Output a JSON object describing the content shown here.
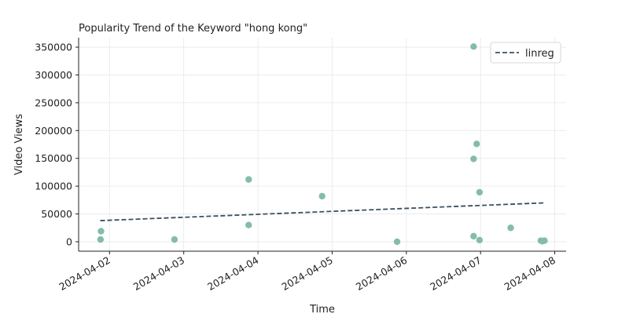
{
  "chart_data": {
    "type": "scatter",
    "title": "Popularity Trend of the Keyword \"hong kong\"",
    "xlabel": "Time",
    "ylabel": "Video Views",
    "x_ticks": [
      "2024-04-02",
      "2024-04-03",
      "2024-04-04",
      "2024-04-05",
      "2024-04-06",
      "2024-04-07",
      "2024-04-08"
    ],
    "y_ticks": [
      0,
      50000,
      100000,
      150000,
      200000,
      250000,
      300000,
      350000
    ],
    "ylim": [
      -17000,
      367000
    ],
    "xlim": [
      "2024-04-01T14:00",
      "2024-04-08T03:40"
    ],
    "grid": true,
    "legend": {
      "placement": "top-right",
      "entries": [
        "linreg"
      ]
    },
    "points": [
      {
        "x": "2024-04-01T21:15",
        "y": 19000
      },
      {
        "x": "2024-04-01T21:05",
        "y": 4000
      },
      {
        "x": "2024-04-02T21:00",
        "y": 4000
      },
      {
        "x": "2024-04-03T21:00",
        "y": 112000
      },
      {
        "x": "2024-04-03T21:00",
        "y": 30000
      },
      {
        "x": "2024-04-04T20:45",
        "y": 82000
      },
      {
        "x": "2024-04-05T21:00",
        "y": 0
      },
      {
        "x": "2024-04-06T21:45",
        "y": 351000
      },
      {
        "x": "2024-04-06T22:45",
        "y": 176000
      },
      {
        "x": "2024-04-06T21:45",
        "y": 149000
      },
      {
        "x": "2024-04-06T23:40",
        "y": 89000
      },
      {
        "x": "2024-04-06T21:45",
        "y": 10000
      },
      {
        "x": "2024-04-06T23:40",
        "y": 3000
      },
      {
        "x": "2024-04-07T09:45",
        "y": 25000
      },
      {
        "x": "2024-04-07T19:30",
        "y": 2000
      },
      {
        "x": "2024-04-07T20:40",
        "y": 2000
      },
      {
        "x": "2024-04-07T20:00",
        "y": 1000
      }
    ],
    "series": [
      {
        "name": "linreg",
        "type": "line",
        "x": [
          "2024-04-01T21:00",
          "2024-04-07T21:00"
        ],
        "y": [
          38000,
          70000
        ]
      }
    ]
  },
  "colors": {
    "points": "#84bcab",
    "linreg": "#3c4f5e"
  }
}
